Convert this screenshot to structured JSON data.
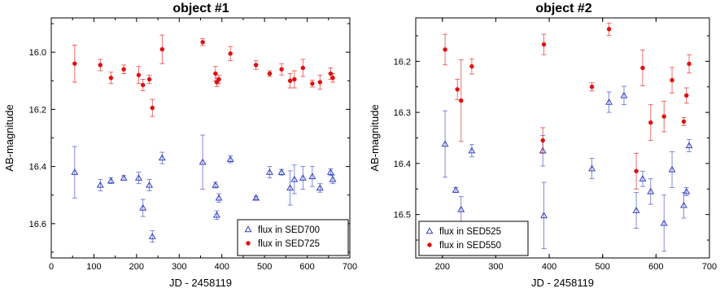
{
  "chart_data": [
    {
      "type": "scatter",
      "title": "object #1",
      "xlabel": "JD - 2458119",
      "ylabel": "AB-magnitude",
      "xlim": [
        0,
        700
      ],
      "ylim": [
        16.72,
        15.88
      ],
      "y_inverted": true,
      "xticks": [
        0,
        100,
        200,
        300,
        400,
        500,
        600,
        700
      ],
      "xtick_labels": [
        "0",
        "100",
        "200",
        "300",
        "400",
        "500",
        "600",
        "700"
      ],
      "yticks": [
        16.0,
        16.2,
        16.4,
        16.6
      ],
      "ytick_labels": [
        "16.0",
        "16.2",
        "16.4",
        "16.6"
      ],
      "legend_position": "bottom-right",
      "series": [
        {
          "name": "flux in SED700",
          "marker": "open-triangle",
          "color": "#3340bf",
          "points": [
            {
              "x": 55,
              "y": 16.42,
              "err": 0.09
            },
            {
              "x": 115,
              "y": 16.465,
              "err": 0.02
            },
            {
              "x": 140,
              "y": 16.45,
              "err": 0.01
            },
            {
              "x": 170,
              "y": 16.44,
              "err": 0.008
            },
            {
              "x": 205,
              "y": 16.44,
              "err": 0.02
            },
            {
              "x": 215,
              "y": 16.545,
              "err": 0.03
            },
            {
              "x": 230,
              "y": 16.465,
              "err": 0.02
            },
            {
              "x": 237,
              "y": 16.645,
              "err": 0.02
            },
            {
              "x": 260,
              "y": 16.37,
              "err": 0.02
            },
            {
              "x": 355,
              "y": 16.385,
              "err": 0.095
            },
            {
              "x": 385,
              "y": 16.465,
              "err": 0.01
            },
            {
              "x": 388,
              "y": 16.57,
              "err": 0.015
            },
            {
              "x": 393,
              "y": 16.51,
              "err": 0.015
            },
            {
              "x": 420,
              "y": 16.375,
              "err": 0.012
            },
            {
              "x": 480,
              "y": 16.51,
              "err": 0.005
            },
            {
              "x": 512,
              "y": 16.42,
              "err": 0.02
            },
            {
              "x": 540,
              "y": 16.42,
              "err": 0.01
            },
            {
              "x": 560,
              "y": 16.475,
              "err": 0.06
            },
            {
              "x": 570,
              "y": 16.445,
              "err": 0.05
            },
            {
              "x": 590,
              "y": 16.44,
              "err": 0.04
            },
            {
              "x": 612,
              "y": 16.435,
              "err": 0.035
            },
            {
              "x": 630,
              "y": 16.475,
              "err": 0.015
            },
            {
              "x": 655,
              "y": 16.42,
              "err": 0.012
            },
            {
              "x": 660,
              "y": 16.445,
              "err": 0.015
            }
          ]
        },
        {
          "name": "flux in SED725",
          "marker": "filled-circle",
          "color": "#e01010",
          "points": [
            {
              "x": 55,
              "y": 16.04,
              "err": 0.065
            },
            {
              "x": 115,
              "y": 16.045,
              "err": 0.02
            },
            {
              "x": 140,
              "y": 16.09,
              "err": 0.02
            },
            {
              "x": 170,
              "y": 16.06,
              "err": 0.015
            },
            {
              "x": 205,
              "y": 16.08,
              "err": 0.03
            },
            {
              "x": 215,
              "y": 16.115,
              "err": 0.02
            },
            {
              "x": 230,
              "y": 16.095,
              "err": 0.015
            },
            {
              "x": 237,
              "y": 16.195,
              "err": 0.03
            },
            {
              "x": 260,
              "y": 15.99,
              "err": 0.05
            },
            {
              "x": 355,
              "y": 15.965,
              "err": 0.012
            },
            {
              "x": 385,
              "y": 16.075,
              "err": 0.025
            },
            {
              "x": 388,
              "y": 16.105,
              "err": 0.015
            },
            {
              "x": 393,
              "y": 16.095,
              "err": 0.015
            },
            {
              "x": 420,
              "y": 16.005,
              "err": 0.025
            },
            {
              "x": 480,
              "y": 16.045,
              "err": 0.015
            },
            {
              "x": 512,
              "y": 16.075,
              "err": 0.01
            },
            {
              "x": 540,
              "y": 16.06,
              "err": 0.02
            },
            {
              "x": 560,
              "y": 16.1,
              "err": 0.025
            },
            {
              "x": 570,
              "y": 16.095,
              "err": 0.03
            },
            {
              "x": 590,
              "y": 16.055,
              "err": 0.03
            },
            {
              "x": 612,
              "y": 16.11,
              "err": 0.012
            },
            {
              "x": 630,
              "y": 16.105,
              "err": 0.025
            },
            {
              "x": 655,
              "y": 16.075,
              "err": 0.02
            },
            {
              "x": 660,
              "y": 16.09,
              "err": 0.015
            }
          ]
        }
      ]
    },
    {
      "type": "scatter",
      "title": "object #2",
      "xlabel": "JD - 2458119",
      "ylabel": "AB-magnitude",
      "xlim": [
        150,
        700
      ],
      "ylim": [
        16.585,
        16.115
      ],
      "y_inverted": true,
      "xticks": [
        200,
        300,
        400,
        500,
        600,
        700
      ],
      "xtick_labels": [
        "200",
        "300",
        "400",
        "500",
        "600",
        "700"
      ],
      "yticks": [
        16.2,
        16.3,
        16.4,
        16.5
      ],
      "ytick_labels": [
        "16.2",
        "16.3",
        "16.4",
        "16.5"
      ],
      "legend_position": "bottom-left",
      "series": [
        {
          "name": "flux in SED525",
          "marker": "open-triangle",
          "color": "#3340bf",
          "points": [
            {
              "x": 205,
              "y": 16.362,
              "err": 0.065
            },
            {
              "x": 225,
              "y": 16.452,
              "err": 0.005
            },
            {
              "x": 235,
              "y": 16.49,
              "err": 0.025
            },
            {
              "x": 255,
              "y": 16.375,
              "err": 0.012
            },
            {
              "x": 388,
              "y": 16.375,
              "err": 0.03
            },
            {
              "x": 390,
              "y": 16.502,
              "err": 0.065
            },
            {
              "x": 480,
              "y": 16.41,
              "err": 0.02
            },
            {
              "x": 512,
              "y": 16.28,
              "err": 0.02
            },
            {
              "x": 540,
              "y": 16.267,
              "err": 0.018
            },
            {
              "x": 563,
              "y": 16.492,
              "err": 0.035
            },
            {
              "x": 575,
              "y": 16.43,
              "err": 0.015
            },
            {
              "x": 590,
              "y": 16.455,
              "err": 0.025
            },
            {
              "x": 615,
              "y": 16.517,
              "err": 0.055
            },
            {
              "x": 630,
              "y": 16.412,
              "err": 0.035
            },
            {
              "x": 652,
              "y": 16.482,
              "err": 0.025
            },
            {
              "x": 657,
              "y": 16.455,
              "err": 0.008
            },
            {
              "x": 662,
              "y": 16.365,
              "err": 0.012
            }
          ]
        },
        {
          "name": "flux in SED550",
          "marker": "filled-circle",
          "color": "#e01010",
          "points": [
            {
              "x": 205,
              "y": 16.177,
              "err": 0.03
            },
            {
              "x": 228,
              "y": 16.255,
              "err": 0.02
            },
            {
              "x": 235,
              "y": 16.277,
              "err": 0.08
            },
            {
              "x": 255,
              "y": 16.21,
              "err": 0.015
            },
            {
              "x": 388,
              "y": 16.355,
              "err": 0.025
            },
            {
              "x": 390,
              "y": 16.167,
              "err": 0.02
            },
            {
              "x": 480,
              "y": 16.25,
              "err": 0.008
            },
            {
              "x": 512,
              "y": 16.137,
              "err": 0.012
            },
            {
              "x": 563,
              "y": 16.415,
              "err": 0.035
            },
            {
              "x": 575,
              "y": 16.213,
              "err": 0.035
            },
            {
              "x": 590,
              "y": 16.32,
              "err": 0.035
            },
            {
              "x": 615,
              "y": 16.308,
              "err": 0.03
            },
            {
              "x": 630,
              "y": 16.237,
              "err": 0.025
            },
            {
              "x": 652,
              "y": 16.318,
              "err": 0.008
            },
            {
              "x": 657,
              "y": 16.267,
              "err": 0.015
            },
            {
              "x": 662,
              "y": 16.205,
              "err": 0.018
            }
          ]
        }
      ]
    }
  ]
}
